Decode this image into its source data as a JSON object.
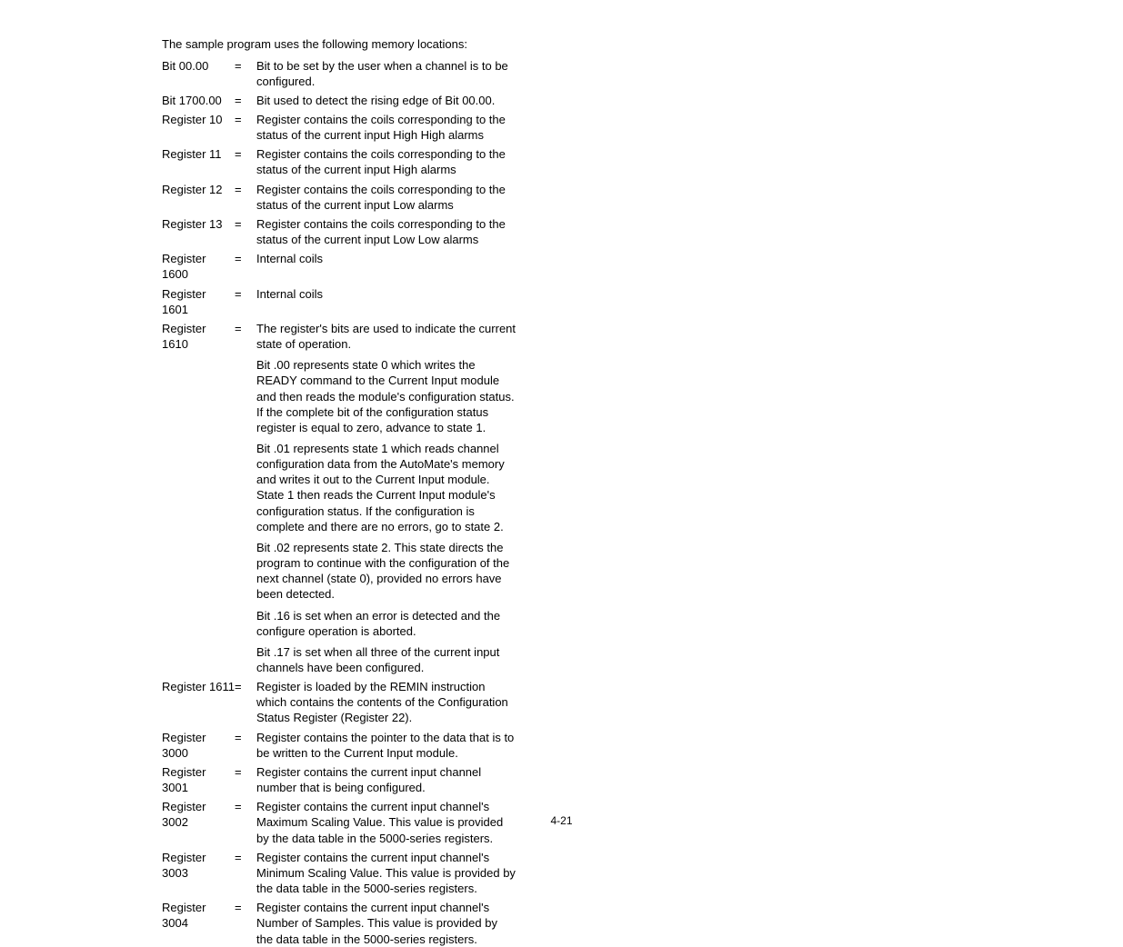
{
  "intro": "The sample program uses the following memory locations:",
  "rows": [
    {
      "label": "Bit 00.00",
      "eq": "=",
      "desc": [
        "Bit to be set by the user when a channel is to be configured."
      ]
    },
    {
      "label": "Bit 1700.00",
      "eq": "=",
      "desc": [
        "Bit used to detect the rising edge of Bit 00.00."
      ]
    },
    {
      "label": "Register 10",
      "eq": "=",
      "desc": [
        "Register contains the coils corresponding to the status of the current input High High alarms"
      ]
    },
    {
      "label": "Register 11",
      "eq": "=",
      "desc": [
        "Register contains the coils corresponding to the status of the current input High alarms"
      ]
    },
    {
      "label": "Register 12",
      "eq": "=",
      "desc": [
        "Register contains the coils corresponding to the status of the current input Low alarms"
      ]
    },
    {
      "label": "Register 13",
      "eq": "=",
      "desc": [
        "Register contains the coils corresponding to the status of the current input Low Low alarms"
      ]
    },
    {
      "label": "Register 1600",
      "eq": "=",
      "desc": [
        "Internal coils"
      ]
    },
    {
      "label": "Register 1601",
      "eq": "=",
      "desc": [
        "Internal coils"
      ]
    },
    {
      "label": "Register 1610",
      "eq": "=",
      "desc": [
        "The register's bits are used to indicate the current state of operation.",
        "Bit .00 represents state 0 which writes the READY command to the Current Input module and then reads the module's configuration status. If the complete bit of the configuration status register is equal to zero, advance to state 1.",
        "Bit .01 represents state 1 which reads channel configuration data from the AutoMate's memory and writes it out to the Current Input module. State 1 then reads the Current Input module's configuration status. If the configuration is complete and there are no errors, go to state 2.",
        "Bit .02 represents state 2. This state directs the program to continue with the configuration of the next channel (state 0), provided no errors have been detected.",
        "Bit .16 is set when an error is detected and the configure operation is aborted.",
        "Bit .17 is set when all three of the current input channels have been configured."
      ]
    },
    {
      "label": "Register 1611",
      "eq": "=",
      "desc": [
        "Register is loaded by the REMIN instruction which contains the contents of the Configuration Status Register (Register 22)."
      ]
    },
    {
      "label": "Register 3000",
      "eq": "=",
      "desc": [
        "Register contains the pointer to the data that is to be written to the Current Input module."
      ]
    },
    {
      "label": "Register 3001",
      "eq": "=",
      "desc": [
        "Register contains the current input channel number that is being configured."
      ]
    },
    {
      "label": "Register 3002",
      "eq": "=",
      "desc": [
        "Register contains the current input channel's Maximum Scaling Value. This value is provided by the data table in the 5000-series registers."
      ]
    },
    {
      "label": "Register 3003",
      "eq": "=",
      "desc": [
        "Register contains the current input channel's Minimum Scaling Value. This value is provided by the data table in the 5000-series registers."
      ]
    },
    {
      "label": "Register 3004",
      "eq": "=",
      "desc": [
        "Register contains the current input channel's Number of Samples. This value is provided by the data table in the 5000-series registers."
      ]
    }
  ],
  "page_number": "4-21"
}
